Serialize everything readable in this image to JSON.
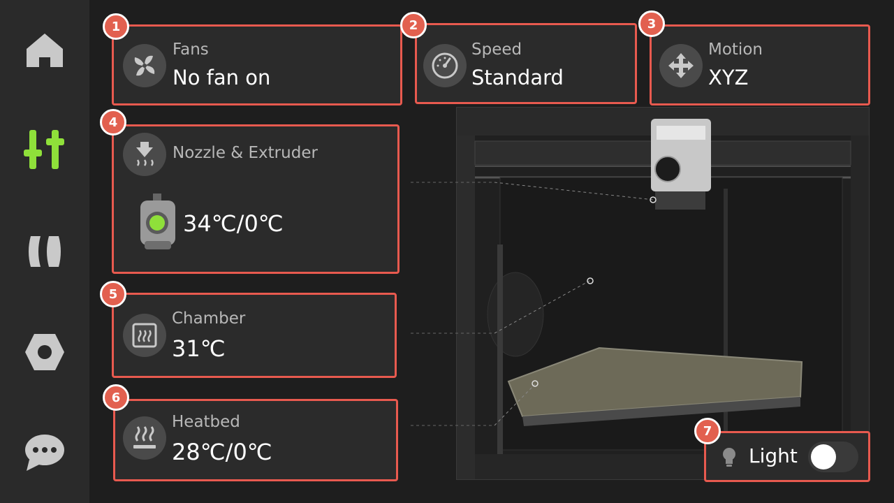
{
  "sidebar": {
    "items": [
      {
        "name": "home",
        "active": false
      },
      {
        "name": "controls",
        "active": true
      },
      {
        "name": "filament",
        "active": false
      },
      {
        "name": "settings",
        "active": false
      },
      {
        "name": "messages",
        "active": false
      }
    ]
  },
  "badges": [
    "1",
    "2",
    "3",
    "4",
    "5",
    "6",
    "7"
  ],
  "fans": {
    "label": "Fans",
    "value": "No fan on",
    "icon": "fan-icon"
  },
  "speed": {
    "label": "Speed",
    "value": "Standard",
    "icon": "speedometer-icon"
  },
  "motion": {
    "label": "Motion",
    "value": "XYZ",
    "icon": "move-arrows-icon"
  },
  "nozzle": {
    "label": "Nozzle & Extruder",
    "value": "34℃/0℃",
    "icon": "nozzle-heat-icon"
  },
  "chamber": {
    "label": "Chamber",
    "value": "31℃",
    "icon": "chamber-icon"
  },
  "heatbed": {
    "label": "Heatbed",
    "value": "28℃/0℃",
    "icon": "heatbed-icon"
  },
  "light": {
    "label": "Light",
    "state": "off",
    "icon": "bulb-icon"
  },
  "colors": {
    "accent": "#8fe03a",
    "highlight": "#e85a4f",
    "sidebar_icon": "#c9c9c9"
  }
}
